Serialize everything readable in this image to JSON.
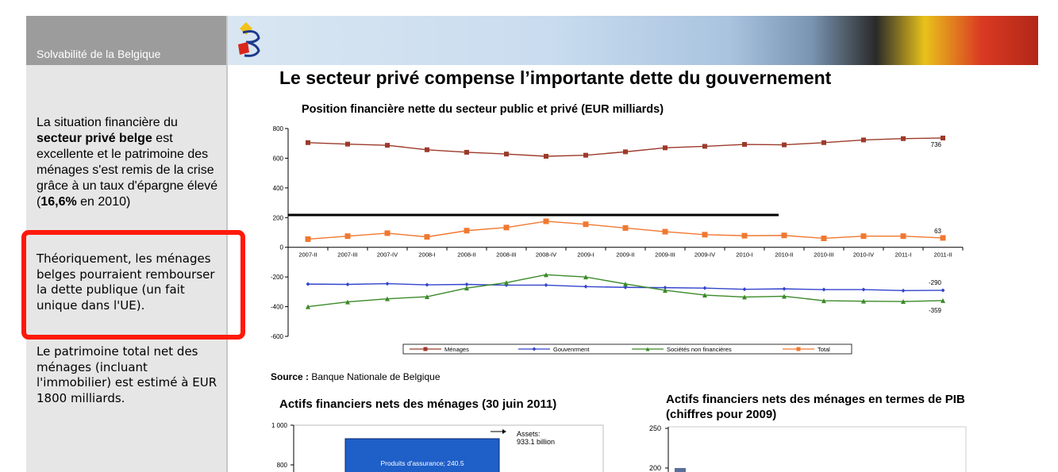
{
  "sidebar": {
    "title": "Solvabilité de la Belgique",
    "p1": {
      "t1": "La situation financière du ",
      "t2": "secteur privé belge",
      "t3": " est excellente et le patrimoine des ménages s'est remis de la crise grâce à un taux d'épargne élevé (",
      "t4": "16,6%",
      "t5": " en 2010)"
    },
    "p2": "Théoriquement, les ménages belges pourraient rembourser la dette publique (un fait unique dans l'UE).",
    "p3": "Le patrimoine total net des ménages (incluant l'immobilier) est estimé à EUR 1800 milliards."
  },
  "main": {
    "title": "Le secteur privé compense l’importante dette du gouvernement",
    "source_label": "Source :",
    "source_text": "Banque Nationale de Belgique",
    "sub_chart_1_title": "Actifs financiers nets des ménages (30 juin 2011)",
    "sub_chart_2_title_line1": "Actifs financiers nets des ménages en termes de PIB",
    "sub_chart_2_title_line2": "(chiffres pour 2009)"
  },
  "colors": {
    "menages": "#9c3a2a",
    "gouvernement": "#3344cc",
    "societes": "#3a8a28",
    "total": "#f07830",
    "highlight": "#ff1a0a",
    "bar": "#1f5fc8"
  },
  "chart_data": [
    {
      "type": "line",
      "title": "Position financière nette du secteur public et privé (EUR milliards)",
      "categories": [
        "2007-II",
        "2007-III",
        "2007-IV",
        "2008-I",
        "2008-II",
        "2008-III",
        "2008-IV",
        "2009-I",
        "2009-II",
        "2009-III",
        "2009-IV",
        "2010-I",
        "2010-II",
        "2010-III",
        "2010-IV",
        "2011-I",
        "2011-II"
      ],
      "ylim": [
        -600,
        800
      ],
      "yticks": [
        800,
        600,
        400,
        200,
        0,
        -200,
        -400,
        -600
      ],
      "series": [
        {
          "name": "Ménages",
          "values": [
            705,
            695,
            687,
            657,
            640,
            628,
            613,
            620,
            643,
            670,
            680,
            693,
            690,
            705,
            723,
            732,
            736
          ]
        },
        {
          "name": "Gouvenrment",
          "values": [
            -248,
            -250,
            -245,
            -253,
            -250,
            -255,
            -255,
            -265,
            -270,
            -272,
            -275,
            -283,
            -280,
            -285,
            -285,
            -292,
            -290
          ]
        },
        {
          "name": "Sociétés non financières",
          "values": [
            -400,
            -368,
            -347,
            -333,
            -275,
            -238,
            -185,
            -200,
            -247,
            -290,
            -322,
            -335,
            -330,
            -360,
            -363,
            -365,
            -359
          ]
        },
        {
          "name": "Total",
          "values": [
            55,
            75,
            95,
            70,
            112,
            133,
            175,
            155,
            130,
            105,
            85,
            78,
            80,
            60,
            75,
            75,
            63
          ]
        }
      ],
      "data_labels": {
        "menages_last": "736",
        "total_last": "63",
        "gouvernement_last": "-290",
        "societes_last": "-359"
      },
      "grid": false,
      "legend": "bottom"
    },
    {
      "type": "bar",
      "title": "Actifs financiers nets des ménages (30 juin 2011)",
      "yticks": [
        "1 000",
        "800"
      ],
      "ylim_visible": [
        750,
        1000
      ],
      "bar_label": "Produits d'assurance; 240.5",
      "bar_top_value": 933.1,
      "annotation": {
        "line1": "Assets:",
        "line2": "933.1 billion"
      }
    },
    {
      "type": "bar",
      "title": "Actifs financiers nets des ménages en termes de PIB (chiffres pour 2009)",
      "yticks": [
        "250",
        "200"
      ],
      "ylim_visible": [
        190,
        250
      ]
    }
  ]
}
